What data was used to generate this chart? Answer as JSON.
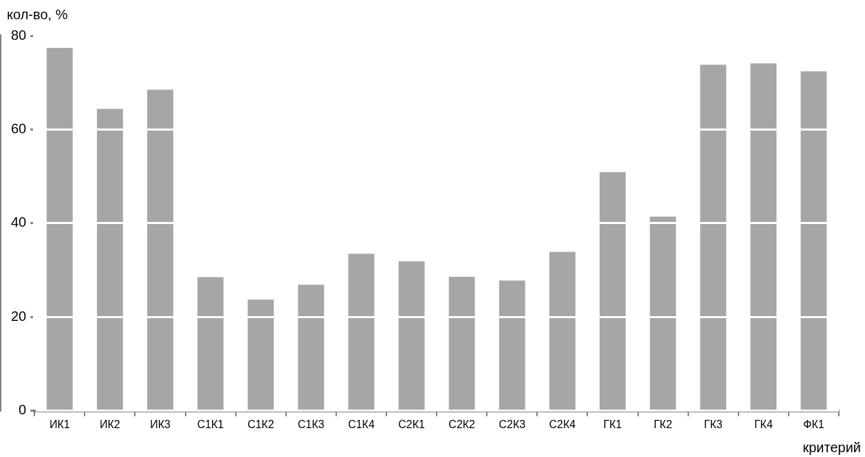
{
  "chart_data": {
    "type": "bar",
    "ylabel": "кол-во, %",
    "xlabel": "критерий",
    "categories": [
      "ИК1",
      "ИК2",
      "ИК3",
      "С1К1",
      "С1К2",
      "С1К3",
      "С1К4",
      "С2К1",
      "С2К2",
      "С2К3",
      "С2К4",
      "ГК1",
      "ГК2",
      "ГК3",
      "ГК4",
      "ФК1"
    ],
    "values": [
      77.4,
      64.4,
      68.5,
      28.5,
      23.7,
      26.9,
      33.5,
      31.9,
      28.6,
      27.8,
      33.9,
      50.9,
      41.4,
      73.8,
      74.1,
      72.4
    ],
    "color": "#a6a6a6",
    "ylim": [
      0,
      80
    ],
    "yticks": [
      0,
      20,
      40,
      60,
      80
    ],
    "grid": "y"
  }
}
